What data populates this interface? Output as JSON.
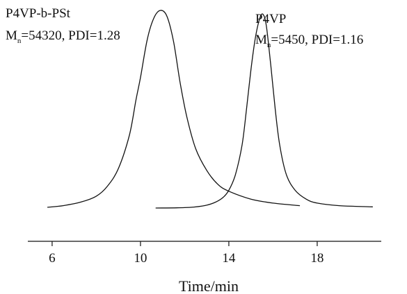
{
  "chart_data": {
    "type": "line",
    "title": "",
    "xlabel": "Time/min",
    "ylabel": "",
    "xlim": [
      4.9,
      20.9
    ],
    "ylim": [
      0,
      1
    ],
    "x_ticks": [
      6,
      10,
      14,
      18
    ],
    "grid": false,
    "legend": "none",
    "series": [
      {
        "name": "P4VP-b-PSt",
        "annotation": {
          "line1": "P4VP-b-PSt",
          "mn_prefix": "M",
          "mn_sub": "n",
          "mn_rest": "=54320, PDI=1.28"
        },
        "x": [
          5.8,
          6.5,
          7.3,
          8.0,
          8.5,
          9.0,
          9.5,
          9.8,
          10.0,
          10.3,
          10.6,
          10.9,
          11.2,
          11.5,
          11.8,
          12.1,
          12.5,
          13.0,
          13.5,
          14.0,
          15.0,
          16.0,
          17.2
        ],
        "y": [
          0.004,
          0.012,
          0.03,
          0.06,
          0.11,
          0.2,
          0.37,
          0.55,
          0.66,
          0.85,
          0.96,
          1.0,
          0.97,
          0.84,
          0.63,
          0.46,
          0.3,
          0.19,
          0.12,
          0.085,
          0.045,
          0.025,
          0.012
        ]
      },
      {
        "name": "P4VP",
        "annotation": {
          "line1": "P4VP",
          "mn_prefix": "M",
          "mn_sub": "n",
          "mn_rest": "=5450, PDI=1.16"
        },
        "x": [
          10.7,
          12.0,
          12.8,
          13.3,
          13.7,
          14.0,
          14.3,
          14.6,
          14.8,
          15.0,
          15.2,
          15.4,
          15.55,
          15.7,
          15.9,
          16.1,
          16.3,
          16.6,
          17.0,
          17.5,
          18.0,
          19.0,
          20.5
        ],
        "y": [
          0.0,
          0.002,
          0.01,
          0.025,
          0.05,
          0.09,
          0.17,
          0.32,
          0.5,
          0.7,
          0.86,
          0.96,
          0.98,
          0.92,
          0.72,
          0.5,
          0.32,
          0.17,
          0.09,
          0.045,
          0.025,
          0.012,
          0.006
        ]
      }
    ]
  }
}
